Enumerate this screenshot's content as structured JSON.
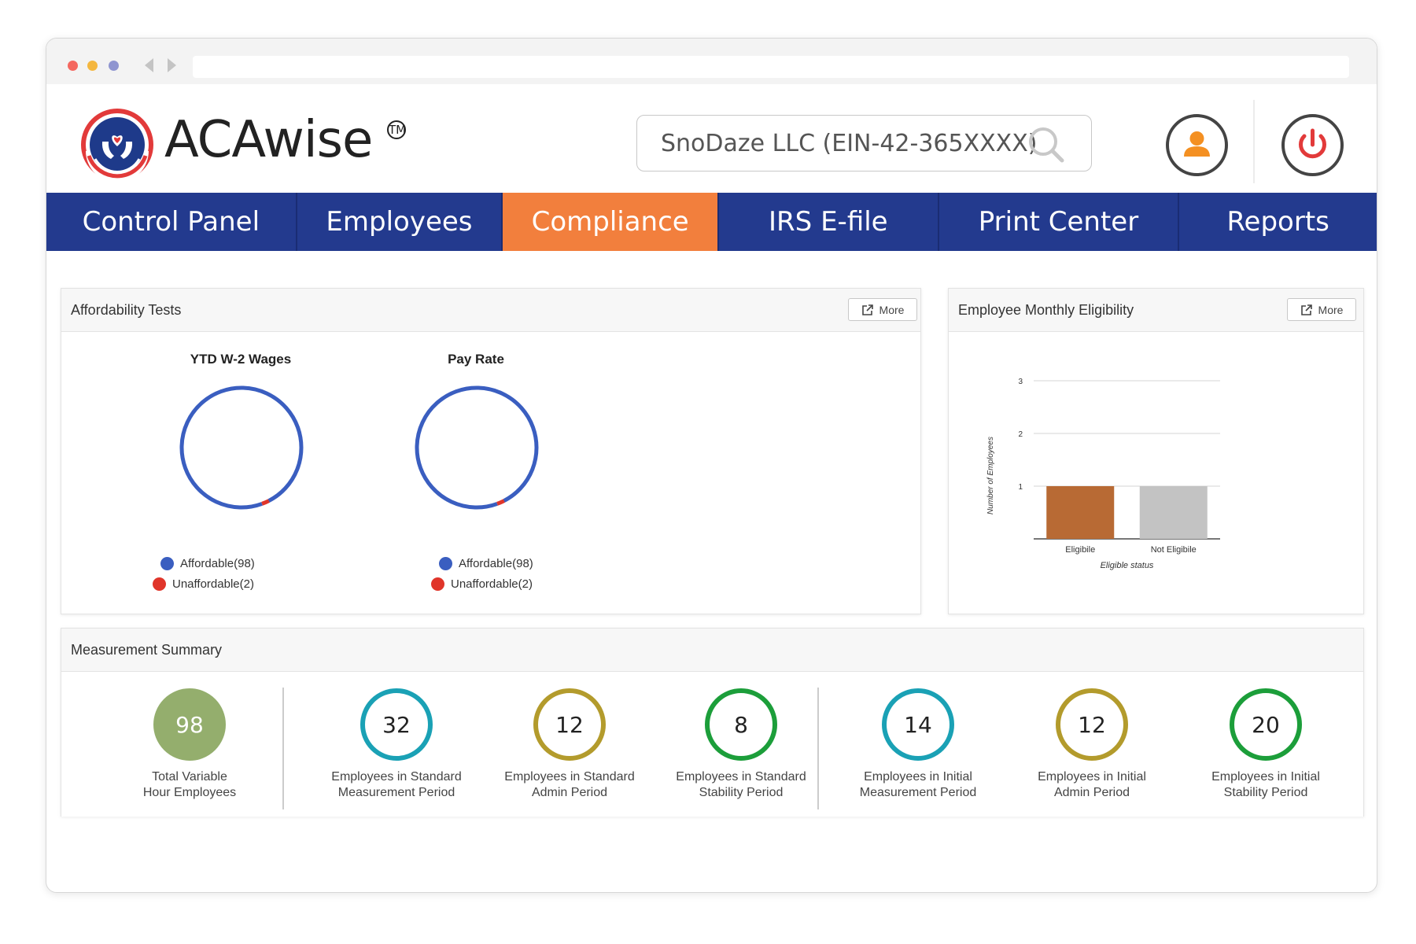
{
  "app": {
    "brand": "ACAwise",
    "trademark": "TM"
  },
  "search": {
    "value": "SnoDaze LLC (EIN-42-365XXXX)"
  },
  "nav": {
    "active": "Compliance",
    "tabs": [
      "Control Panel",
      "Employees",
      "Compliance",
      "IRS E-file",
      "Print Center",
      "Reports"
    ]
  },
  "affordability": {
    "title": "Affordability Tests",
    "more_label": "More",
    "charts": [
      {
        "title": "YTD W-2 Wages",
        "legend": [
          {
            "label": "Affordable(98)",
            "value": 98,
            "color": "#3a5ec0"
          },
          {
            "label": "Unaffordable(2)",
            "value": 2,
            "color": "#e0352a"
          }
        ]
      },
      {
        "title": "Pay Rate",
        "legend": [
          {
            "label": "Affordable(98)",
            "value": 98,
            "color": "#3a5ec0"
          },
          {
            "label": "Unaffordable(2)",
            "value": 2,
            "color": "#e0352a"
          }
        ]
      }
    ]
  },
  "eligibility": {
    "title": "Employee Monthly Eligibility",
    "more_label": "More"
  },
  "chart_data": {
    "type": "bar",
    "categories": [
      "Eligibile",
      "Not Eligibile"
    ],
    "values": [
      1,
      1
    ],
    "colors": [
      "#b86a34",
      "#c3c3c3"
    ],
    "xlabel": "Eligible status",
    "ylabel": "Number of Employees",
    "ylim": [
      0,
      3
    ],
    "yticks": [
      1,
      2,
      3
    ],
    "grid": true
  },
  "measurement": {
    "title": "Measurement Summary",
    "items": [
      {
        "value": "98",
        "label_line1": "Total Variable",
        "label_line2": "Hour Employees",
        "color": "#94ae6d",
        "filled": true
      },
      {
        "value": "32",
        "label_line1": "Employees in Standard",
        "label_line2": "Measurement Period",
        "color": "#1aa1b5"
      },
      {
        "value": "12",
        "label_line1": "Employees in Standard",
        "label_line2": "Admin Period",
        "color": "#b39b2c"
      },
      {
        "value": "8",
        "label_line1": "Employees in Standard",
        "label_line2": "Stability Period",
        "color": "#1c9e3a"
      },
      {
        "value": "14",
        "label_line1": "Employees in Initial",
        "label_line2": "Measurement Period",
        "color": "#1aa1b5"
      },
      {
        "value": "12",
        "label_line1": "Employees in Initial",
        "label_line2": "Admin Period",
        "color": "#b39b2c"
      },
      {
        "value": "20",
        "label_line1": "Employees in Initial",
        "label_line2": "Stability Period",
        "color": "#1c9e3a"
      }
    ]
  },
  "icons": {
    "search": "search-icon",
    "user": "user-icon",
    "power": "power-icon",
    "external_link": "external-link-icon"
  }
}
